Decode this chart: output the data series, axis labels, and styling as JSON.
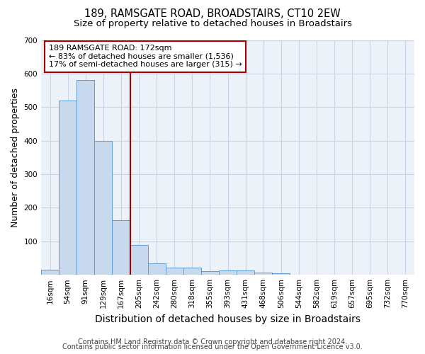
{
  "title": "189, RAMSGATE ROAD, BROADSTAIRS, CT10 2EW",
  "subtitle": "Size of property relative to detached houses in Broadstairs",
  "xlabel": "Distribution of detached houses by size in Broadstairs",
  "ylabel": "Number of detached properties",
  "bar_labels": [
    "16sqm",
    "54sqm",
    "91sqm",
    "129sqm",
    "167sqm",
    "205sqm",
    "242sqm",
    "280sqm",
    "318sqm",
    "355sqm",
    "393sqm",
    "431sqm",
    "468sqm",
    "506sqm",
    "544sqm",
    "582sqm",
    "619sqm",
    "657sqm",
    "695sqm",
    "732sqm",
    "770sqm"
  ],
  "bar_heights": [
    15,
    520,
    580,
    400,
    163,
    88,
    35,
    22,
    22,
    10,
    13,
    14,
    6,
    5,
    0,
    0,
    0,
    0,
    0,
    0,
    0
  ],
  "bar_color": "#c8d9ee",
  "bar_edge_color": "#5b9bd5",
  "background_color": "#ffffff",
  "plot_bg_color": "#edf2f9",
  "grid_color": "#c8d4e8",
  "vline_x": 4.5,
  "vline_color": "#aa0000",
  "annotation_title": "189 RAMSGATE ROAD: 172sqm",
  "annotation_line1": "← 83% of detached houses are smaller (1,536)",
  "annotation_line2": "17% of semi-detached houses are larger (315) →",
  "annotation_box_color": "#ffffff",
  "annotation_box_edge": "#aa0000",
  "ylim": [
    0,
    700
  ],
  "yticks": [
    0,
    100,
    200,
    300,
    400,
    500,
    600,
    700
  ],
  "footer1": "Contains HM Land Registry data © Crown copyright and database right 2024.",
  "footer2": "Contains public sector information licensed under the Open Government Licence v3.0.",
  "title_fontsize": 10.5,
  "subtitle_fontsize": 9.5,
  "tick_fontsize": 7.5,
  "ylabel_fontsize": 9,
  "xlabel_fontsize": 10,
  "footer_fontsize": 7,
  "annot_fontsize": 8
}
